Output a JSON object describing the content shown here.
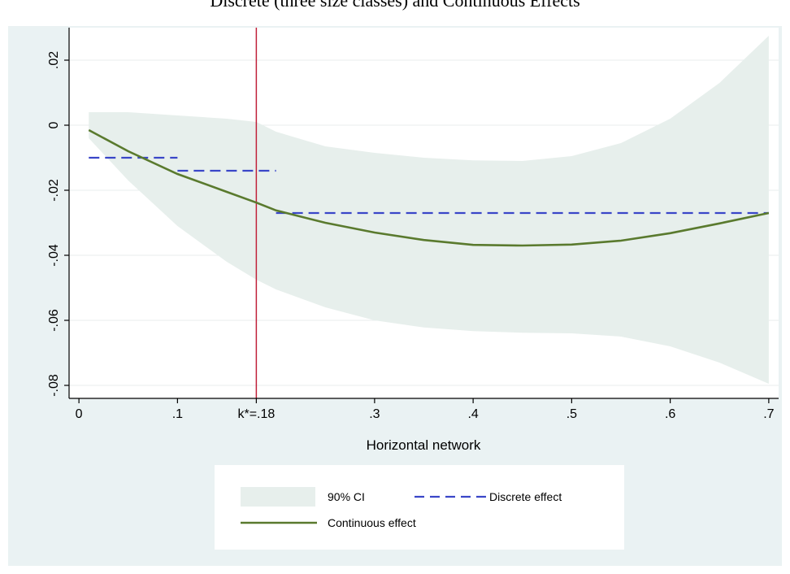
{
  "figure": {
    "title": "Discrete (three size classes) and Continuous Effects"
  },
  "chart_data": {
    "type": "line",
    "title": "Discrete (three size classes) and Continuous Effects",
    "xlabel": "Horizontal network",
    "ylabel": "",
    "xlim": [
      -0.01,
      0.71
    ],
    "ylim": [
      -0.084,
      0.03
    ],
    "x_ticks": [
      {
        "value": 0,
        "label": "0"
      },
      {
        "value": 0.1,
        "label": ".1"
      },
      {
        "value": 0.18,
        "label": "k*=.18"
      },
      {
        "value": 0.3,
        "label": ".3"
      },
      {
        "value": 0.4,
        "label": ".4"
      },
      {
        "value": 0.5,
        "label": ".5"
      },
      {
        "value": 0.6,
        "label": ".6"
      },
      {
        "value": 0.7,
        "label": ".7"
      }
    ],
    "y_ticks": [
      {
        "value": 0.02,
        "label": ".02"
      },
      {
        "value": 0,
        "label": "0"
      },
      {
        "value": -0.02,
        "label": "-.02"
      },
      {
        "value": -0.04,
        "label": "-.04"
      },
      {
        "value": -0.06,
        "label": "-.06"
      },
      {
        "value": -0.08,
        "label": "-.08"
      }
    ],
    "grid": true,
    "threshold": {
      "x": 0.18,
      "label": "k*=.18",
      "color": "#c0203a"
    },
    "series": [
      {
        "name": "90% CI",
        "kind": "band",
        "color": "#e7efec",
        "x": [
          0.01,
          0.05,
          0.1,
          0.15,
          0.18,
          0.2,
          0.25,
          0.3,
          0.35,
          0.4,
          0.45,
          0.5,
          0.55,
          0.6,
          0.65,
          0.7
        ],
        "upper": [
          0.004,
          0.004,
          0.003,
          0.002,
          0.001,
          -0.002,
          -0.0065,
          -0.0085,
          -0.01,
          -0.0108,
          -0.011,
          -0.0095,
          -0.0055,
          0.002,
          0.013,
          0.0275
        ],
        "lower": [
          -0.004,
          -0.017,
          -0.031,
          -0.042,
          -0.0475,
          -0.0505,
          -0.056,
          -0.06,
          -0.0622,
          -0.0633,
          -0.0638,
          -0.064,
          -0.065,
          -0.068,
          -0.073,
          -0.0795
        ]
      },
      {
        "name": "Continuous effect",
        "kind": "line",
        "color": "#5a7a2e",
        "x": [
          0.01,
          0.05,
          0.1,
          0.15,
          0.18,
          0.2,
          0.25,
          0.3,
          0.35,
          0.4,
          0.45,
          0.5,
          0.55,
          0.6,
          0.65,
          0.7
        ],
        "y": [
          -0.0015,
          -0.008,
          -0.015,
          -0.0205,
          -0.0238,
          -0.0262,
          -0.03,
          -0.033,
          -0.0353,
          -0.0368,
          -0.037,
          -0.0367,
          -0.0355,
          -0.0332,
          -0.0302,
          -0.027
        ]
      },
      {
        "name": "Discrete effect",
        "kind": "step",
        "color": "#3a46c8",
        "segments": [
          {
            "x0": 0.01,
            "x1": 0.1,
            "y": -0.01
          },
          {
            "x0": 0.1,
            "x1": 0.2,
            "y": -0.014
          },
          {
            "x0": 0.2,
            "x1": 0.7,
            "y": -0.027
          }
        ]
      }
    ],
    "legend": {
      "placement": "bottom-center",
      "entries": [
        {
          "label": "90% CI",
          "kind": "band",
          "color": "#e7efec"
        },
        {
          "label": "Discrete effect",
          "kind": "dashed",
          "color": "#3a46c8"
        },
        {
          "label": "Continuous effect",
          "kind": "line",
          "color": "#5a7a2e"
        }
      ]
    },
    "background_color": "#eaf2f3",
    "plot_background_color": "#ffffff",
    "grid_color": "#e8eeee"
  }
}
